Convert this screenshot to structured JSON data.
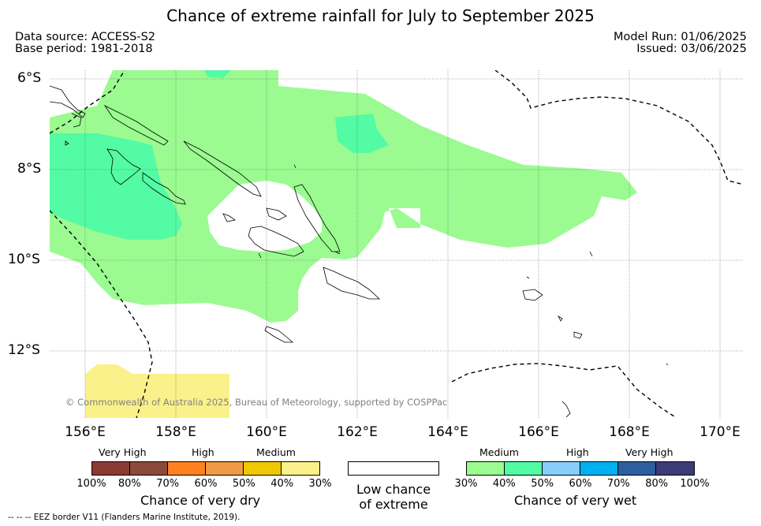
{
  "title": "Chance of extreme rainfall for July to September 2025",
  "meta": {
    "data_source": "Data source: ACCESS-S2",
    "base_period": "Base period: 1981-2018",
    "model_run": "Model Run: 01/06/2025",
    "issued": "Issued: 03/06/2025"
  },
  "map": {
    "lat_labels": [
      "6°S",
      "8°S",
      "10°S",
      "12°S"
    ],
    "lon_labels": [
      "156°E",
      "158°E",
      "160°E",
      "162°E",
      "164°E",
      "166°E",
      "168°E",
      "170°E"
    ],
    "copyright": "© Commonwealth of Australia 2025, Bureau of Meteorology, supported by COSPPac",
    "colors": {
      "medium_wet": "#9bfb91",
      "high_wet": "#53fba4",
      "medium_dry": "#fbf18a",
      "coast": "#000000",
      "eez": "#000000"
    }
  },
  "legend": {
    "dry": {
      "levels": [
        "Very High",
        "High",
        "Medium"
      ],
      "colors": [
        "#8b3a33",
        "#8a4b3b",
        "#fd8121",
        "#ef9b45",
        "#f0c800",
        "#fbf18a"
      ],
      "ticks": [
        "100%",
        "80%",
        "70%",
        "60%",
        "50%",
        "40%",
        "30%"
      ],
      "caption": "Chance of very dry"
    },
    "low": {
      "caption_line1": "Low chance",
      "caption_line2": "of extreme"
    },
    "wet": {
      "levels": [
        "Medium",
        "High",
        "Very High"
      ],
      "colors": [
        "#9bfb91",
        "#53fba4",
        "#87cefa",
        "#00b0f0",
        "#2f5e9e",
        "#3d3a78"
      ],
      "ticks": [
        "30%",
        "40%",
        "50%",
        "60%",
        "70%",
        "80%",
        "100%"
      ],
      "caption": "Chance of very wet"
    }
  },
  "footer": "--  --  -- EEZ border V11 (Flanders Marine Institute, 2019)."
}
